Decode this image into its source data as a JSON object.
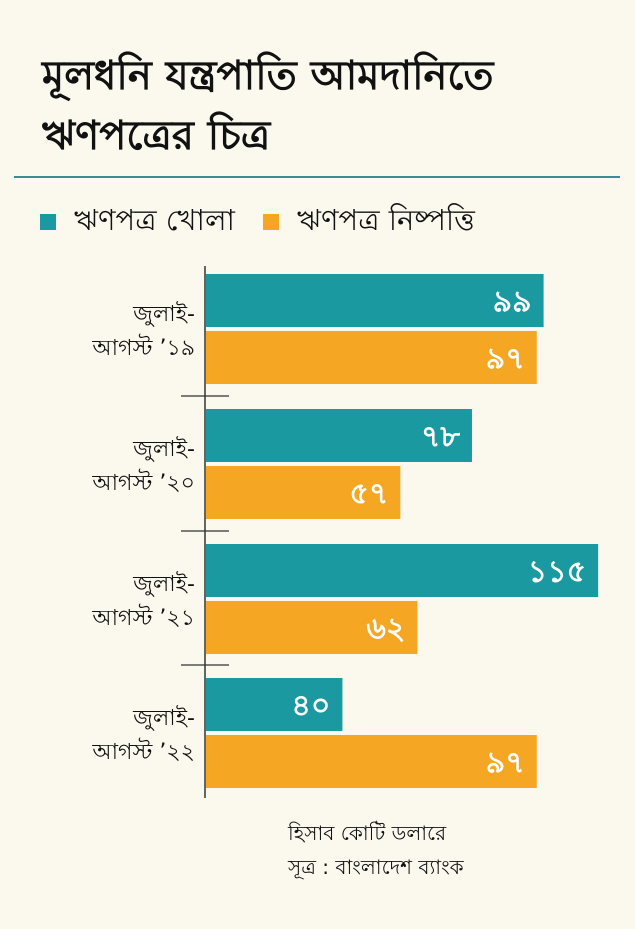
{
  "title_lines": [
    "মূলধনি যন্ত্রপাতি আমদানিতে",
    "ঋণপত্রের চিত্র"
  ],
  "footnote": {
    "unit": "হিসাব কোটি ডলারে",
    "source": "সূত্র : বাংলাদেশ ব্যাংক"
  },
  "colors": {
    "background": "#fbf8ee",
    "series_open": "#1a9aa0",
    "series_settled": "#f5a623",
    "axis": "#333333",
    "label_text": "#ffffff"
  },
  "chart_data": {
    "type": "bar",
    "orientation": "horizontal",
    "title": "মূলধনি যন্ত্রপাতি আমদানিতে ঋণপত্রের চিত্র",
    "categories": [
      [
        "জুলাই-",
        "আগস্ট ’১৯"
      ],
      [
        "জুলাই-",
        "আগস্ট ’২০"
      ],
      [
        "জুলাই-",
        "আগস্ট ’২১"
      ],
      [
        "জুলাই-",
        "আগস্ট ’২২"
      ]
    ],
    "series": [
      {
        "name": "ঋণপত্র খোলা",
        "values": [
          99,
          78,
          115,
          40
        ],
        "labels": [
          "৯৯",
          "৭৮",
          "১১৫",
          "৪০"
        ]
      },
      {
        "name": "ঋণপত্র নিষ্পত্তি",
        "values": [
          97,
          57,
          62,
          97
        ],
        "labels": [
          "৯৭",
          "৫৭",
          "৬২",
          "৯৭"
        ]
      }
    ],
    "xlim": [
      0,
      115
    ],
    "xlabel": "",
    "ylabel": "",
    "grid": false,
    "legend_position": "top-left",
    "unit_note": "হিসাব কোটি ডলারে"
  }
}
